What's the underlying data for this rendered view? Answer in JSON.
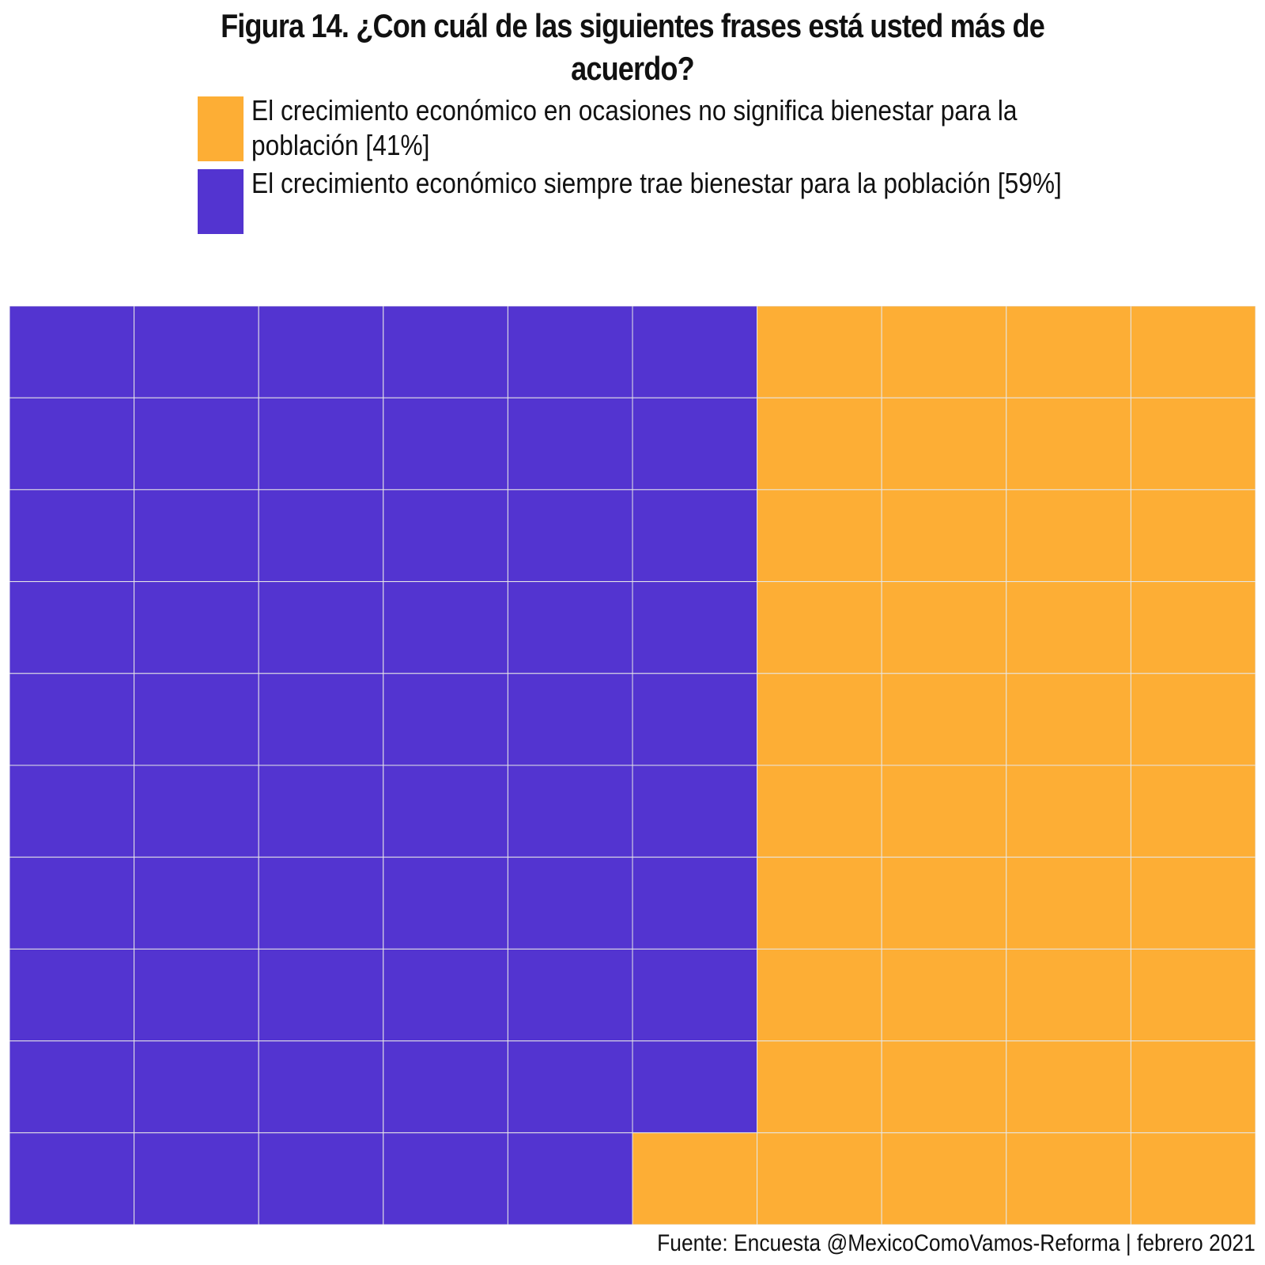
{
  "chart_data": {
    "type": "waffle",
    "title": "Figura 14. ¿Con cuál de las siguientes frases está usted más de acuerdo?",
    "grid": {
      "rows": 10,
      "cols": 10
    },
    "series": [
      {
        "name": "El crecimiento económico en ocasiones no significa bienestar para la población [41%]",
        "value": 41,
        "color": "#FDAE35"
      },
      {
        "name": "El crecimiento económico siempre trae bienestar para la población [59%]",
        "value": 59,
        "color": "#5334D0"
      }
    ],
    "legend_position": "top",
    "source": "Fuente: Encuesta @MexicoComoVamos-Reforma | febrero 2021"
  }
}
